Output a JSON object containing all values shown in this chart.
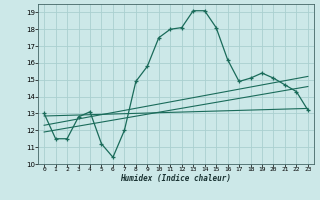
{
  "xlabel": "Humidex (Indice chaleur)",
  "ylabel": "",
  "bg_color": "#cce8e8",
  "line_color": "#1a6b5a",
  "grid_color": "#aad0d0",
  "xlim": [
    -0.5,
    23.5
  ],
  "ylim": [
    10,
    19.5
  ],
  "xticks": [
    0,
    1,
    2,
    3,
    4,
    5,
    6,
    7,
    8,
    9,
    10,
    11,
    12,
    13,
    14,
    15,
    16,
    17,
    18,
    19,
    20,
    21,
    22,
    23
  ],
  "yticks": [
    10,
    11,
    12,
    13,
    14,
    15,
    16,
    17,
    18,
    19
  ],
  "line1_x": [
    0,
    1,
    2,
    3,
    4,
    5,
    6,
    7,
    8,
    9,
    10,
    11,
    12,
    13,
    14,
    15,
    16,
    17,
    18,
    19,
    20,
    21,
    22,
    23
  ],
  "line1_y": [
    13.0,
    11.5,
    11.5,
    12.8,
    13.1,
    11.2,
    10.4,
    12.0,
    14.9,
    15.8,
    17.5,
    18.0,
    18.1,
    19.1,
    19.1,
    18.1,
    16.2,
    14.9,
    15.1,
    15.4,
    15.1,
    14.7,
    14.3,
    13.2
  ],
  "line2_x": [
    0,
    23
  ],
  "line2_y": [
    12.85,
    13.3
  ],
  "line3_x": [
    0,
    23
  ],
  "line3_y": [
    12.3,
    15.2
  ],
  "line4_x": [
    0,
    23
  ],
  "line4_y": [
    11.9,
    14.6
  ]
}
